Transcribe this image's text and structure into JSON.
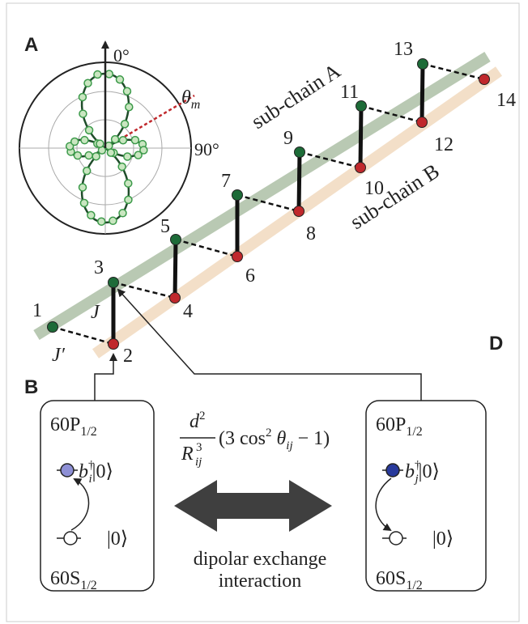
{
  "panels": {
    "a": "A",
    "b": "B",
    "d": "D"
  },
  "polar": {
    "angle_0": "0°",
    "angle_90": "90°",
    "theta": "θ",
    "theta_sub": "m"
  },
  "chains": {
    "a": "sub-chain A",
    "b": "sub-chain B"
  },
  "sites": [
    1,
    2,
    3,
    4,
    5,
    6,
    7,
    8,
    9,
    10,
    11,
    12,
    13,
    14
  ],
  "couplings": {
    "j": "J",
    "j_prime": "J′"
  },
  "left_box": {
    "upper": "60P",
    "upper_sub": "1/2",
    "op": "b",
    "op_sup": "†",
    "op_sub": "i",
    "ket": "|0⟩",
    "lower_state": "|0⟩",
    "lower": "60S",
    "lower_sub": "1/2"
  },
  "right_box": {
    "upper": "60P",
    "upper_sub": "1/2",
    "op": "b",
    "op_sup": "†",
    "op_sub": "j",
    "ket": "|0⟩",
    "lower_state": "|0⟩",
    "lower": "60S",
    "lower_sub": "1/2"
  },
  "formula": {
    "num": "d",
    "num_sup": "2",
    "den": "R",
    "den_sup": "3",
    "den_sub": "ij",
    "expr": "(3 cos",
    "expr_sup": "2",
    "expr_var": " θ",
    "expr_sub": "ij",
    "expr_end": " − 1)"
  },
  "caption": [
    "dipolar exchange",
    "interaction"
  ]
}
